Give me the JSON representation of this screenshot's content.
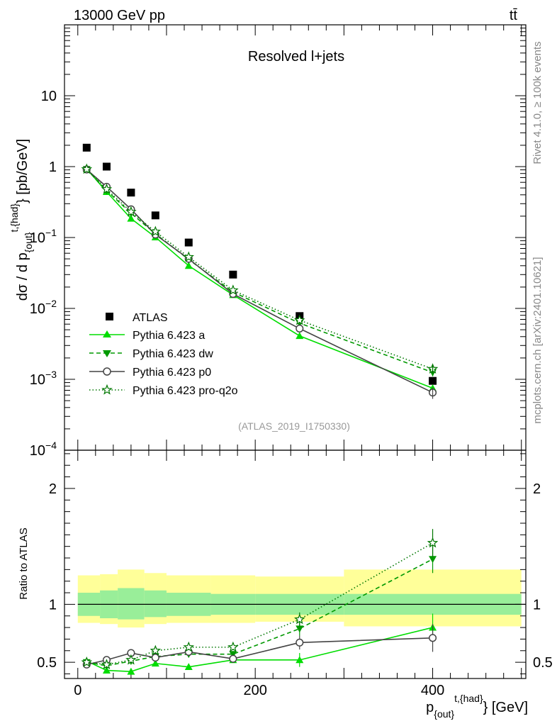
{
  "header": {
    "energy_label": "13000 GeV pp",
    "process_label": "tt̄"
  },
  "side_labels": {
    "rivet": "Rivet 4.1.0, ≥ 100k events",
    "source": "mcplots.cern.ch [arXiv:2401.10621]"
  },
  "legend_items": [
    {
      "label": "ATLAS"
    },
    {
      "label": "Pythia 6.423 a"
    },
    {
      "label": "Pythia 6.423 dw"
    },
    {
      "label": "Pythia 6.423 p0"
    },
    {
      "label": "Pythia 6.423 pro-q2o"
    }
  ],
  "chart_data": [
    {
      "type": "scatter",
      "panel": "main",
      "title": "Resolved l+jets",
      "analysis_tag": "(ATLAS_2019_I1750330)",
      "ylabel_main": "dσ / d p",
      "ylabel_sub": "{out}",
      "ylabel_sup": "t,{had}",
      "ylabel_unit": "} [pb/GeV]",
      "yscale": "log",
      "ylim": [
        0.0001,
        100
      ],
      "xlim": [
        -15,
        505
      ],
      "legend_position": "lower-left",
      "y_tick_labels": [
        {
          "value": 10,
          "base": "10",
          "exp": ""
        },
        {
          "value": 1,
          "base": "1",
          "exp": ""
        },
        {
          "value": 0.1,
          "base": "10",
          "exp": "−1"
        },
        {
          "value": 0.01,
          "base": "10",
          "exp": "−2"
        },
        {
          "value": 0.001,
          "base": "10",
          "exp": "−3"
        },
        {
          "value": 0.0001,
          "base": "10",
          "exp": "−4"
        }
      ],
      "x": [
        10,
        32.5,
        60,
        87.5,
        125,
        175,
        250,
        400
      ],
      "series": [
        {
          "name": "ATLAS",
          "color": "#000000",
          "marker": "square",
          "line": "none",
          "values": [
            1.85,
            1.0,
            0.43,
            0.205,
            0.085,
            0.03,
            0.0078,
            0.00095
          ]
        },
        {
          "name": "Pythia 6.423 a",
          "color": "#00dd00",
          "marker": "triangle-up",
          "line": "solid",
          "values": [
            0.93,
            0.44,
            0.185,
            0.101,
            0.04,
            0.0155,
            0.0041,
            0.00075
          ]
        },
        {
          "name": "Pythia 6.423 dw",
          "color": "#009900",
          "marker": "triangle-down",
          "line": "dashed",
          "values": [
            0.92,
            0.46,
            0.22,
            0.113,
            0.049,
            0.017,
            0.0062,
            0.00125
          ]
        },
        {
          "name": "Pythia 6.423 p0",
          "color": "#444444",
          "marker": "circle-open",
          "line": "solid",
          "values": [
            0.91,
            0.52,
            0.25,
            0.11,
            0.05,
            0.016,
            0.0052,
            0.00065
          ]
        },
        {
          "name": "Pythia 6.423 pro-q2o",
          "color": "#007700",
          "marker": "star-open",
          "line": "dotted",
          "values": [
            0.92,
            0.48,
            0.23,
            0.121,
            0.053,
            0.018,
            0.0068,
            0.0014
          ]
        }
      ]
    },
    {
      "type": "scatter",
      "panel": "ratio",
      "ylabel": "Ratio to ATLAS",
      "xlabel_main": "p",
      "xlabel_sub": "{out}",
      "xlabel_sup": "t,{had}",
      "xlabel_unit": "} [GeV]",
      "ylim": [
        0.36,
        2.33
      ],
      "xlim": [
        -15,
        505
      ],
      "y_ticks": [
        0.5,
        1,
        2
      ],
      "y_tick_labels": [
        "0.5",
        "1",
        "2"
      ],
      "x_ticks": [
        0,
        200,
        400
      ],
      "x_tick_labels": [
        "0",
        "200",
        "400"
      ],
      "bin_edges": [
        0,
        25,
        45,
        75,
        100,
        150,
        200,
        300,
        500
      ],
      "band_inner": [
        [
          0.9,
          1.1
        ],
        [
          0.88,
          1.12
        ],
        [
          0.87,
          1.14
        ],
        [
          0.89,
          1.12
        ],
        [
          0.9,
          1.1
        ],
        [
          0.91,
          1.09
        ],
        [
          0.91,
          1.09
        ],
        [
          0.91,
          1.09
        ]
      ],
      "band_outer": [
        [
          0.84,
          1.25
        ],
        [
          0.83,
          1.26
        ],
        [
          0.8,
          1.3
        ],
        [
          0.83,
          1.27
        ],
        [
          0.84,
          1.25
        ],
        [
          0.84,
          1.25
        ],
        [
          0.85,
          1.24
        ],
        [
          0.81,
          1.3
        ]
      ],
      "x": [
        10,
        32.5,
        60,
        87.5,
        125,
        175,
        250,
        400
      ],
      "series": [
        {
          "name": "Pythia 6.423 a",
          "color": "#00dd00",
          "marker": "triangle-up",
          "line": "solid",
          "values": [
            0.51,
            0.43,
            0.42,
            0.49,
            0.46,
            0.52,
            0.52,
            0.8
          ]
        },
        {
          "name": "Pythia 6.423 dw",
          "color": "#009900",
          "marker": "triangle-down",
          "line": "dashed",
          "values": [
            0.5,
            0.47,
            0.51,
            0.55,
            0.57,
            0.57,
            0.79,
            1.39
          ]
        },
        {
          "name": "Pythia 6.423 p0",
          "color": "#444444",
          "marker": "circle-open",
          "line": "solid",
          "values": [
            0.48,
            0.52,
            0.58,
            0.54,
            0.59,
            0.53,
            0.67,
            0.71
          ]
        },
        {
          "name": "Pythia 6.423 pro-q2o",
          "color": "#007700",
          "marker": "star-open",
          "line": "dotted",
          "values": [
            0.5,
            0.48,
            0.52,
            0.6,
            0.63,
            0.63,
            0.87,
            1.53
          ]
        }
      ]
    }
  ]
}
